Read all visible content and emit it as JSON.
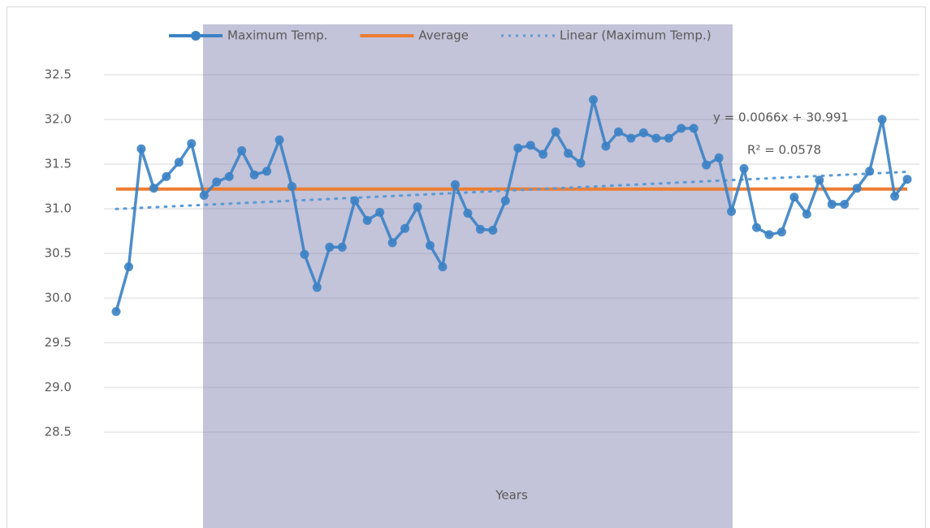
{
  "chart_data": {
    "type": "line",
    "x_label": "Years",
    "ylim": [
      28.5,
      32.5
    ],
    "yticks": [
      {
        "value": 28.5,
        "label": "28.5"
      },
      {
        "value": 29.0,
        "label": "29.0"
      },
      {
        "value": 29.5,
        "label": "29.5"
      },
      {
        "value": 30.0,
        "label": "30.0"
      },
      {
        "value": 30.5,
        "label": "30.5"
      },
      {
        "value": 31.0,
        "label": "31.0"
      },
      {
        "value": 31.5,
        "label": "31.5"
      },
      {
        "value": 32.0,
        "label": "32.0"
      },
      {
        "value": 32.5,
        "label": "32.5"
      }
    ],
    "grid": true,
    "legend": "top",
    "series": [
      {
        "name": "Maximum Temp.",
        "color": "#3b82c4",
        "values": [
          29.85,
          30.35,
          31.67,
          31.23,
          31.36,
          31.52,
          31.73,
          31.15,
          31.3,
          31.36,
          31.65,
          31.38,
          31.42,
          31.77,
          31.25,
          30.49,
          30.12,
          30.57,
          30.57,
          31.09,
          30.87,
          30.96,
          30.62,
          30.78,
          31.02,
          30.59,
          30.35,
          31.27,
          30.95,
          30.77,
          30.76,
          31.09,
          31.68,
          31.71,
          31.61,
          31.86,
          31.62,
          31.51,
          32.22,
          31.7,
          31.86,
          31.79,
          31.85,
          31.79,
          31.79,
          31.9,
          31.9,
          31.49,
          31.57,
          30.97,
          31.45,
          30.79,
          30.71,
          30.74,
          31.13,
          30.94,
          31.32,
          31.05,
          31.05,
          31.23,
          31.42,
          32.0,
          31.14,
          31.33
        ]
      },
      {
        "name": "Average",
        "color": "#ed7d31",
        "value": 31.22
      },
      {
        "name": "Linear (Maximum Temp.)",
        "color": "#5b9bd5",
        "slope": 0.0066,
        "intercept": 30.991
      }
    ],
    "annotations": [
      "y = 0.0066x + 30.991",
      "R² = 0.0578"
    ]
  }
}
